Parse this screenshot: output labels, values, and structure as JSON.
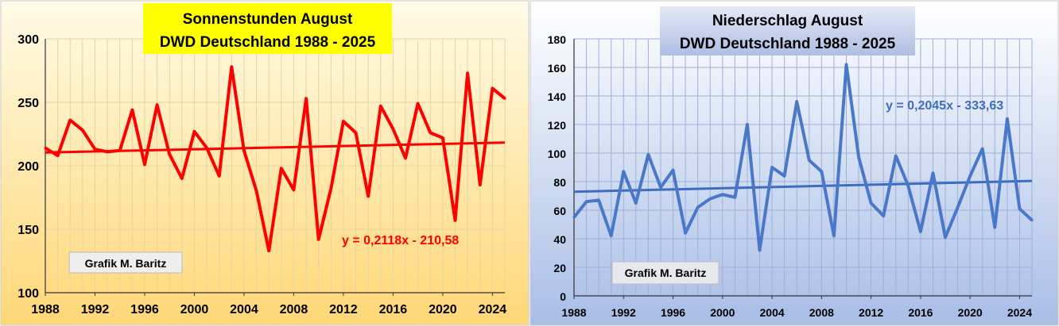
{
  "chart_data": [
    {
      "type": "line",
      "title": "Sonnenstunden August",
      "subtitle": "DWD Deutschland 1988 - 2025",
      "xlabel": "",
      "ylabel": "",
      "x": [
        1988,
        1989,
        1990,
        1991,
        1992,
        1993,
        1994,
        1995,
        1996,
        1997,
        1998,
        1999,
        2000,
        2001,
        2002,
        2003,
        2004,
        2005,
        2006,
        2007,
        2008,
        2009,
        2010,
        2011,
        2012,
        2013,
        2014,
        2015,
        2016,
        2017,
        2018,
        2019,
        2020,
        2021,
        2022,
        2023,
        2024,
        2025
      ],
      "series": [
        {
          "values": [
            214,
            208,
            236,
            228,
            213,
            211,
            212,
            244,
            201,
            248,
            209,
            190,
            227,
            214,
            192,
            278,
            212,
            180,
            133,
            198,
            181,
            253,
            142,
            182,
            235,
            226,
            176,
            247,
            229,
            206,
            249,
            226,
            222,
            157,
            273,
            185,
            261,
            253
          ]
        }
      ],
      "trendline": {
        "slope": 0.2118,
        "intercept": -210.58,
        "label": "y = 0,2118x - 210,58"
      },
      "xticks": [
        "1988",
        "1992",
        "1996",
        "2000",
        "2004",
        "2008",
        "2012",
        "2016",
        "2020",
        "2024"
      ],
      "yticks": [
        "100",
        "150",
        "200",
        "250",
        "300"
      ],
      "xlim": [
        1988,
        2025
      ],
      "ylim": [
        100,
        300
      ],
      "grid": true,
      "credit": "Grafik M. Baritz",
      "colors": {
        "line": "#ff0000",
        "trend": "#ff0000",
        "title_bg": "#ffff00",
        "bg_top": "#fffbe8",
        "bg_bottom": "#ffd777"
      }
    },
    {
      "type": "line",
      "title": "Niederschlag August",
      "subtitle": "DWD Deutschland 1988 - 2025",
      "xlabel": "",
      "ylabel": "",
      "x": [
        1988,
        1989,
        1990,
        1991,
        1992,
        1993,
        1994,
        1995,
        1996,
        1997,
        1998,
        1999,
        2000,
        2001,
        2002,
        2003,
        2004,
        2005,
        2006,
        2007,
        2008,
        2009,
        2010,
        2011,
        2012,
        2013,
        2014,
        2015,
        2016,
        2017,
        2018,
        2019,
        2020,
        2021,
        2022,
        2023,
        2024,
        2025
      ],
      "series": [
        {
          "values": [
            55,
            66,
            67,
            42,
            87,
            65,
            99,
            76,
            88,
            44,
            62,
            68,
            71,
            69,
            120,
            32,
            90,
            84,
            136,
            95,
            87,
            42,
            162,
            97,
            65,
            56,
            98,
            77,
            45,
            86,
            41,
            62,
            84,
            103,
            48,
            124,
            61,
            53
          ]
        }
      ],
      "trendline": {
        "slope": 0.2045,
        "intercept": -333.63,
        "label": "y = 0,2045x - 333,63"
      },
      "xticks": [
        "1988",
        "1992",
        "1996",
        "2000",
        "2004",
        "2008",
        "2012",
        "2016",
        "2020",
        "2024"
      ],
      "yticks": [
        "0",
        "20",
        "40",
        "60",
        "80",
        "100",
        "120",
        "140",
        "160",
        "180"
      ],
      "xlim": [
        1988,
        2025
      ],
      "ylim": [
        0,
        180
      ],
      "grid": true,
      "credit": "Grafik M. Baritz",
      "colors": {
        "line": "#4a78c9",
        "trend": "#3d6cc0",
        "title_bg": "#c9d6ee",
        "bg_top": "#ffffff",
        "bg_bottom": "#a8bde6"
      }
    }
  ]
}
